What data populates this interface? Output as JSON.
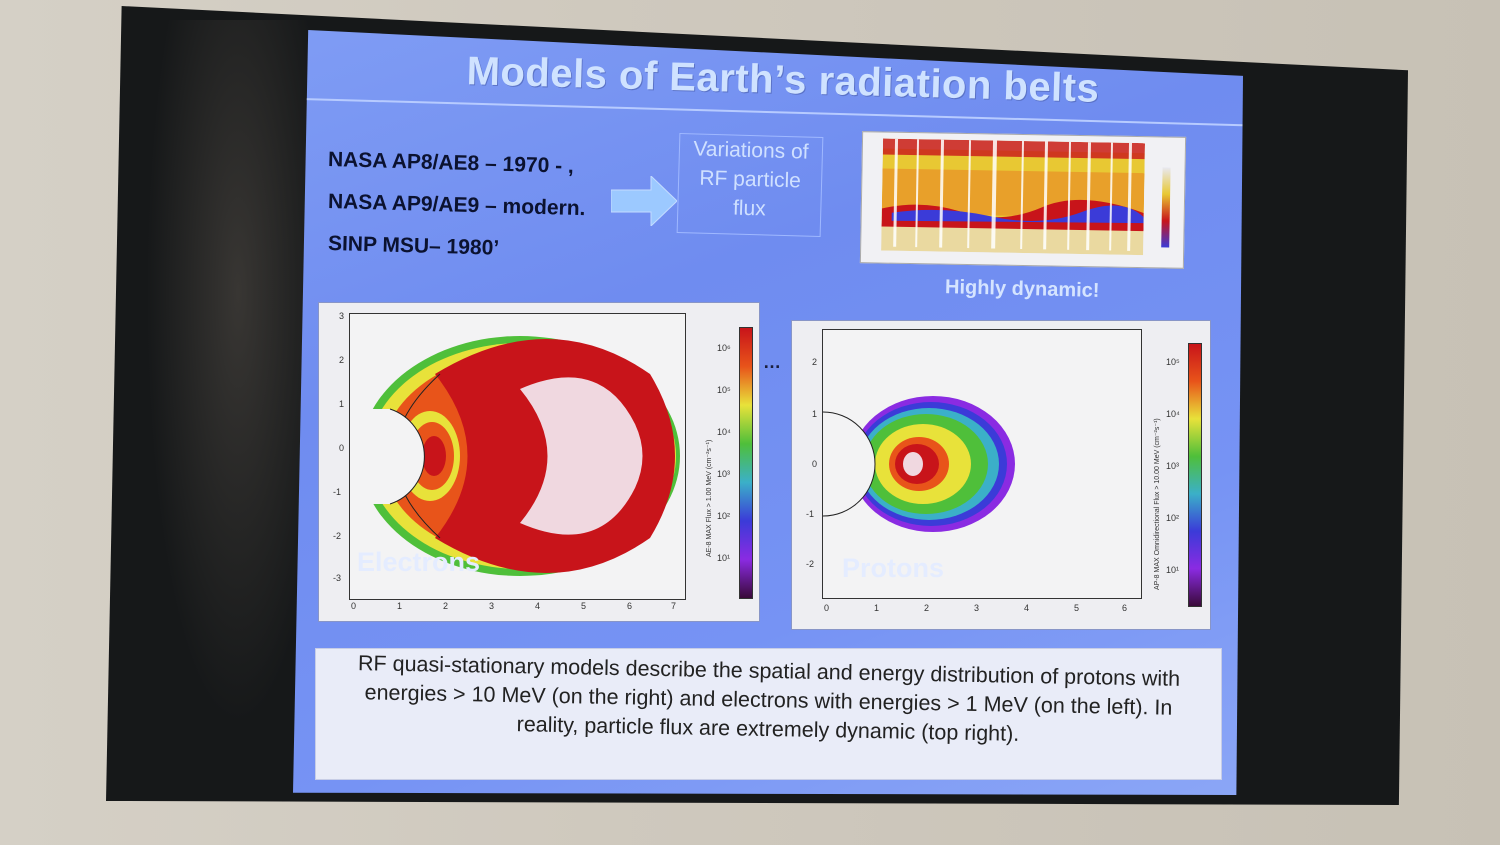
{
  "slide": {
    "title": "Models of Earth’s radiation belts",
    "bullets": [
      "NASA AP8/AE8 – 1970 - ,",
      "NASA AP9/AE9 – modern.",
      "SINP MSU– 1980’"
    ],
    "variations_lines": [
      "Variations of",
      "RF particle",
      "flux"
    ],
    "highly_dynamic": "Highly dynamic!",
    "electrons_label": "Electrons",
    "protons_label": "Protons",
    "ellipsis": "…",
    "caption": "RF quasi-stationary models describe the spatial and energy distribution of protons with energies > 10 MeV (on the right) and electrons with energies > 1 MeV (on the left). In reality, particle flux are extremely dynamic (top right)."
  },
  "electrons_plot": {
    "x_ticks": [
      "0",
      "1",
      "2",
      "3",
      "4",
      "5",
      "6",
      "7"
    ],
    "y_ticks": [
      "3",
      "2",
      "1",
      "0",
      "-1",
      "-2",
      "-3"
    ],
    "colorbar_ticks": [
      "10⁶",
      "10⁵",
      "10⁴",
      "10³",
      "10²",
      "10¹"
    ],
    "colorbar_title": "AE-8 MAX Flux > 1.00 MeV (cm⁻²s⁻¹)"
  },
  "protons_plot": {
    "x_ticks": [
      "0",
      "1",
      "2",
      "3",
      "4",
      "5",
      "6"
    ],
    "y_ticks": [
      "2",
      "1",
      "0",
      "-1",
      "-2"
    ],
    "colorbar_ticks": [
      "10⁵",
      "10⁴",
      "10³",
      "10²",
      "10¹"
    ],
    "colorbar_title": "AP-8 MAX Omnidirectional Flux > 10.00 MeV (cm⁻²s⁻¹)"
  },
  "colors": {
    "slide_bg": "#7591f2",
    "belt_red": "#c8141a",
    "belt_orange": "#e8541a",
    "belt_yellow": "#e8e23a",
    "belt_green": "#4fbf3a",
    "belt_core": "#f0d8e0"
  },
  "icons": {
    "arrow": "right-arrow-icon"
  }
}
